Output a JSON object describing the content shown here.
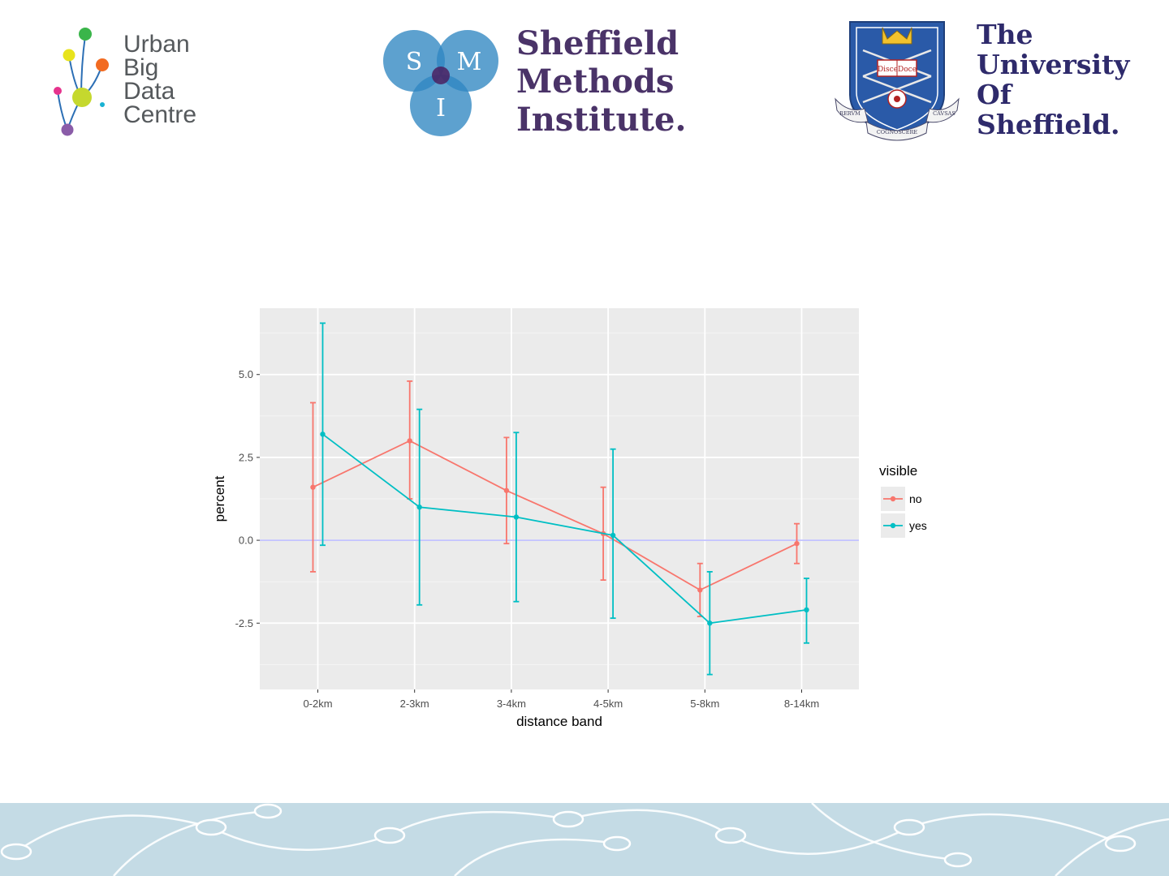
{
  "logos": {
    "ubdc": {
      "lines": [
        "Urban",
        "Big",
        "Data",
        "Centre"
      ]
    },
    "smi": {
      "letters": [
        "S",
        "M",
        "I"
      ],
      "lines": [
        "Sheffield",
        "Methods",
        "Institute."
      ]
    },
    "uos": {
      "lines": [
        "The",
        "University",
        "Of",
        "Sheffield."
      ],
      "crest_book": "DisceDoce",
      "crest_motto": [
        "RERVM",
        "COGNOSCERE",
        "CAVSAS"
      ]
    }
  },
  "chart_data": {
    "type": "line",
    "xlabel": "distance band",
    "ylabel": "percent",
    "categories": [
      "0-2km",
      "2-3km",
      "3-4km",
      "4-5km",
      "5-8km",
      "8-14km"
    ],
    "yticks": [
      -2.5,
      0.0,
      2.5,
      5.0
    ],
    "ytick_labels": [
      "-2.5",
      "0.0",
      "2.5",
      "5.0"
    ],
    "ylim": [
      -4.5,
      7.0
    ],
    "grid": true,
    "reference_line": 0.0,
    "legend": {
      "title": "visible",
      "position": "right"
    },
    "series": [
      {
        "name": "no",
        "color": "#f8766d",
        "values": [
          1.6,
          3.0,
          1.5,
          0.2,
          -1.5,
          -0.1
        ],
        "lower": [
          -0.95,
          1.25,
          -0.1,
          -1.2,
          -2.3,
          -0.7
        ],
        "upper": [
          4.15,
          4.8,
          3.1,
          1.6,
          -0.7,
          0.5
        ]
      },
      {
        "name": "yes",
        "color": "#00bfc4",
        "values": [
          3.2,
          1.0,
          0.7,
          0.15,
          -2.5,
          -2.1
        ],
        "lower": [
          -0.15,
          -1.95,
          -1.85,
          -2.35,
          -4.05,
          -3.1
        ],
        "upper": [
          6.55,
          3.95,
          3.25,
          2.75,
          -0.95,
          -1.15
        ]
      }
    ]
  }
}
